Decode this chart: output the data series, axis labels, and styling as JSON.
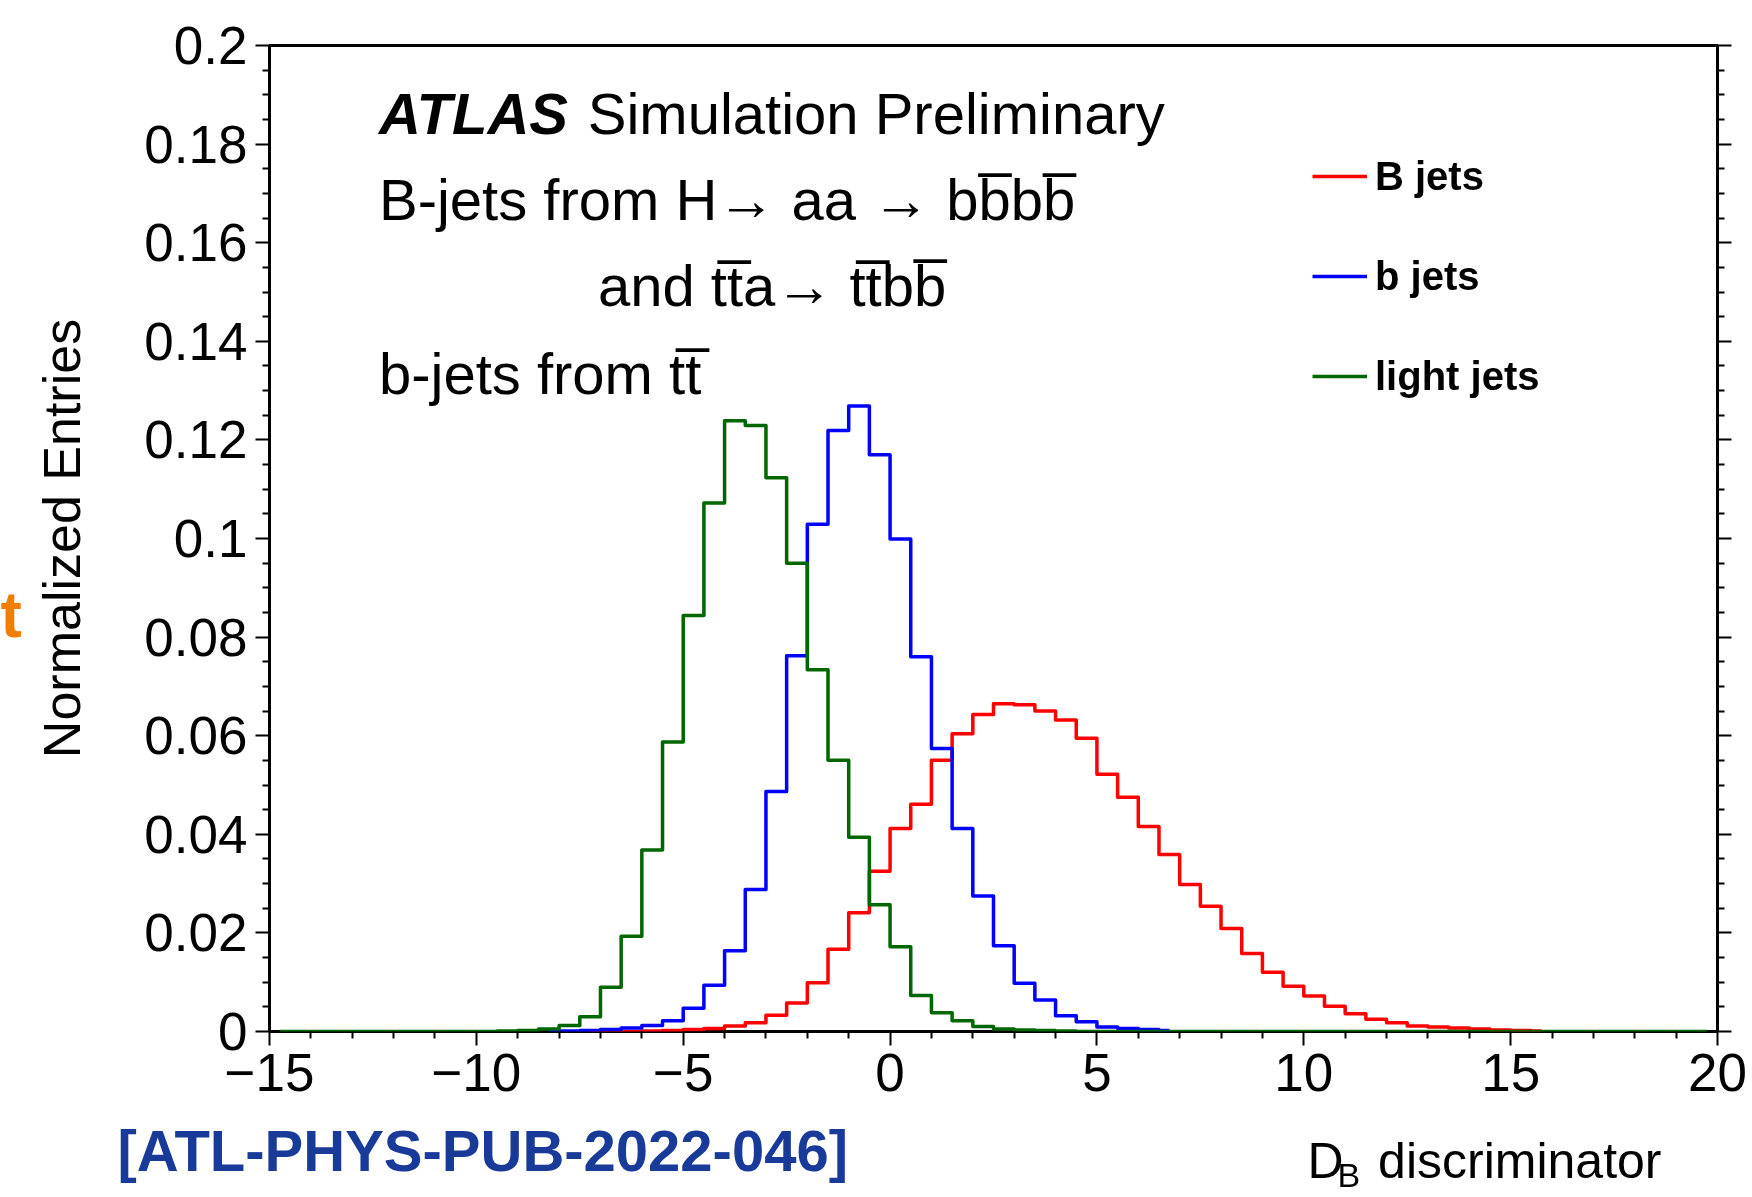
{
  "chart_data": {
    "type": "step",
    "xlabel": "D$_{B}$ discriminator",
    "ylabel": "Normalized Entries",
    "annotations": [
      "ATLAS Simulation Preliminary",
      "B-jets from H→ aa → bb̅bb̅",
      "and tt̅a→ tt̅bb̅",
      "b-jets from tt̅",
      "[ATL-PHYS-PUB-2022-046]",
      "t"
    ],
    "x": [
      -14.75,
      -14.25,
      -13.75,
      -13.25,
      -12.75,
      -12.25,
      -11.75,
      -11.25,
      -10.75,
      -10.25,
      -9.75,
      -9.25,
      -8.75,
      -8.25,
      -7.75,
      -7.25,
      -6.75,
      -6.25,
      -5.75,
      -5.25,
      -4.75,
      -4.25,
      -3.75,
      -3.25,
      -2.75,
      -2.25,
      -1.75,
      -1.25,
      -0.75,
      -0.25,
      0.25,
      0.75,
      1.25,
      1.75,
      2.25,
      2.75,
      3.25,
      3.75,
      4.25,
      4.75,
      5.25,
      5.75,
      6.25,
      6.75,
      7.25,
      7.75,
      8.25,
      8.75,
      9.25,
      9.75,
      10.25,
      10.75,
      11.25,
      11.75,
      12.25,
      12.75,
      13.25,
      13.75,
      14.25,
      14.75,
      15.25,
      15.75,
      16.25,
      16.75,
      17.25,
      17.75,
      18.25,
      18.75,
      19.25,
      19.75
    ],
    "series": [
      {
        "name": "B jets",
        "color": "#ff0000",
        "values": [
          null,
          null,
          null,
          null,
          null,
          null,
          null,
          null,
          null,
          null,
          null,
          null,
          null,
          null,
          null,
          0,
          0,
          0,
          0.0001,
          0.0002,
          0.0004,
          0.0006,
          0.0011,
          0.0018,
          0.0033,
          0.0058,
          0.0099,
          0.0167,
          0.0241,
          0.0325,
          0.0412,
          0.0461,
          0.055,
          0.0604,
          0.0643,
          0.0665,
          0.0663,
          0.065,
          0.0632,
          0.0595,
          0.0522,
          0.0475,
          0.0416,
          0.0359,
          0.0298,
          0.0254,
          0.0209,
          0.0158,
          0.012,
          0.0092,
          0.0072,
          0.0051,
          0.0036,
          0.0025,
          0.0018,
          0.0011,
          0.0009,
          0.0007,
          0.0005,
          0.0003,
          0.0002,
          0.0001,
          null,
          null,
          null,
          null,
          null,
          null,
          null,
          null
        ]
      },
      {
        "name": "b jets",
        "color": "#0000ff",
        "values": [
          null,
          null,
          null,
          null,
          null,
          null,
          null,
          null,
          null,
          null,
          null,
          null,
          null,
          0,
          0.0001,
          0.0002,
          0.0004,
          0.0007,
          0.0012,
          0.0022,
          0.0047,
          0.0094,
          0.0164,
          0.0288,
          0.0487,
          0.0762,
          0.1029,
          0.1219,
          0.1269,
          0.117,
          0.0999,
          0.076,
          0.0574,
          0.0412,
          0.0275,
          0.0174,
          0.0098,
          0.0064,
          0.0032,
          0.002,
          0.0009,
          0.0006,
          0.0004,
          0.0002,
          null,
          null,
          null,
          null,
          null,
          null,
          null,
          null,
          null,
          null,
          null,
          null,
          null,
          null,
          null,
          null,
          null,
          null,
          null,
          null,
          null,
          null,
          null,
          null,
          null,
          null
        ]
      },
      {
        "name": "light jets",
        "color": "#006600",
        "values": [
          0,
          0,
          0,
          0,
          0,
          0,
          0,
          0,
          0,
          0,
          0,
          0.0001,
          0.0002,
          0.0005,
          0.0012,
          0.003,
          0.009,
          0.0193,
          0.0368,
          0.0587,
          0.0844,
          0.1072,
          0.1239,
          0.1229,
          0.1123,
          0.095,
          0.0734,
          0.055,
          0.0394,
          0.0257,
          0.0172,
          0.0073,
          0.0038,
          0.0022,
          0.001,
          0.0005,
          0.0003,
          0.0002,
          0.0001,
          0,
          0,
          0,
          0,
          0,
          0,
          0,
          0,
          0,
          0,
          0,
          0,
          0,
          0,
          0,
          0,
          0,
          0,
          0,
          0,
          0,
          0,
          0,
          0,
          0,
          0,
          0,
          0,
          0,
          0,
          0
        ]
      }
    ],
    "xlim": [
      -15,
      20
    ],
    "ylim": [
      0,
      0.2
    ],
    "xticks": [
      {
        "value": -15,
        "label": "−15"
      },
      {
        "value": -10,
        "label": "−10"
      },
      {
        "value": -5,
        "label": "−5"
      },
      0,
      5,
      10,
      15,
      20
    ],
    "yticks": [
      0,
      0.02,
      0.04,
      0.06,
      0.08,
      0.1,
      0.12,
      0.14,
      0.16,
      0.18,
      0.2
    ],
    "legend": "top right"
  }
}
